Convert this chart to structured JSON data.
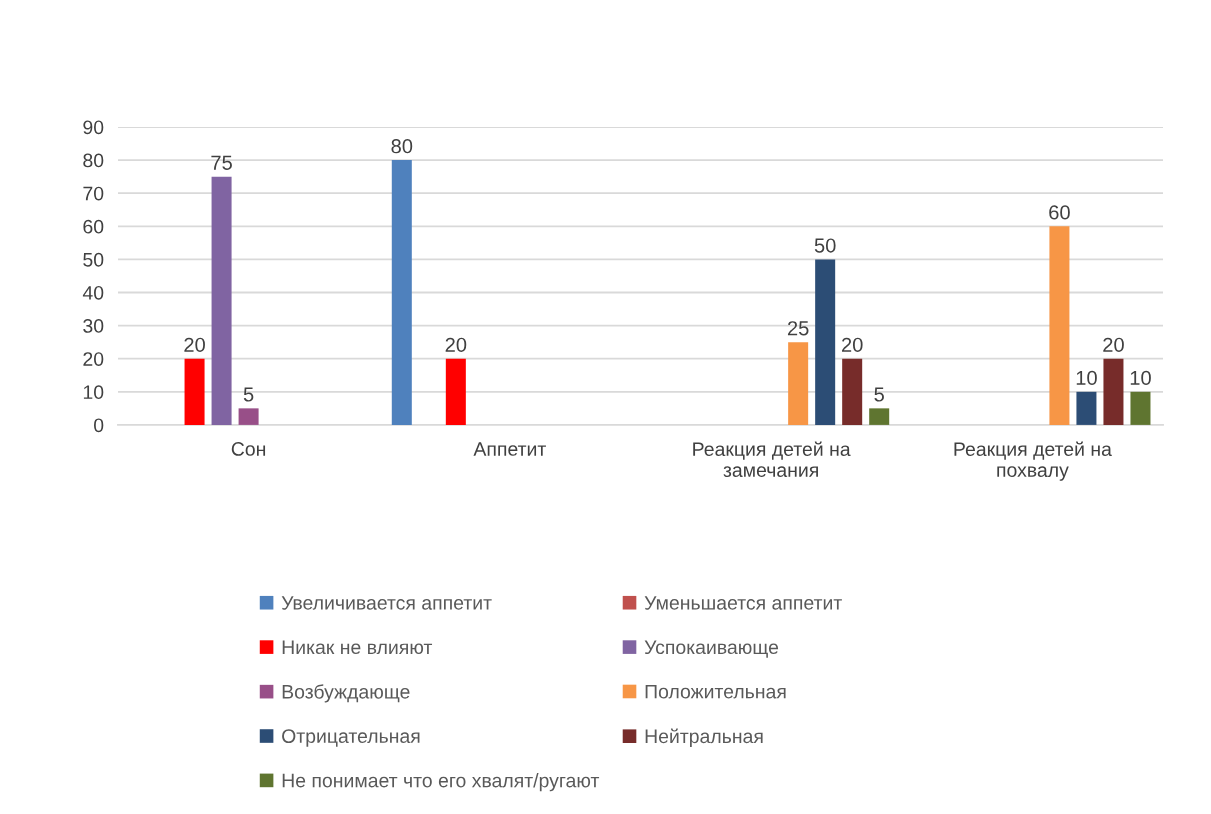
{
  "chart_data": {
    "type": "bar",
    "categories": [
      "Сон",
      "Аппетит",
      "Реакция детей на\nзамечания",
      "Реакция детей на\nпохвалу"
    ],
    "series": [
      {
        "name": "Увеличивается аппетит",
        "color": "#4f81bd",
        "values": [
          null,
          80,
          null,
          null
        ]
      },
      {
        "name": "Уменьшается аппетит",
        "color": "#c0504d",
        "values": [
          null,
          null,
          null,
          null
        ]
      },
      {
        "name": "Никак не влияют",
        "color": "#ff0000",
        "values": [
          20,
          20,
          null,
          null
        ]
      },
      {
        "name": "Успокаивающе",
        "color": "#8064a2",
        "values": [
          75,
          null,
          null,
          null
        ]
      },
      {
        "name": "Возбуждающе",
        "color": "#984f88",
        "values": [
          5,
          null,
          null,
          null
        ]
      },
      {
        "name": "Положительная",
        "color": "#f79646",
        "values": [
          null,
          null,
          25,
          60
        ]
      },
      {
        "name": "Отрицательная",
        "color": "#2c4d75",
        "values": [
          null,
          null,
          50,
          10
        ]
      },
      {
        "name": "Нейтральная",
        "color": "#772c2a",
        "values": [
          null,
          null,
          20,
          20
        ]
      },
      {
        "name": "Не понимает что его хвалят/ругают",
        "color": "#5f7530",
        "values": [
          null,
          null,
          5,
          10
        ]
      }
    ],
    "ylim": [
      0,
      90
    ],
    "yticks": [
      0,
      10,
      20,
      30,
      40,
      50,
      60,
      70,
      80,
      90
    ],
    "grid": "y",
    "legend": "bottom",
    "data_labels": true
  }
}
